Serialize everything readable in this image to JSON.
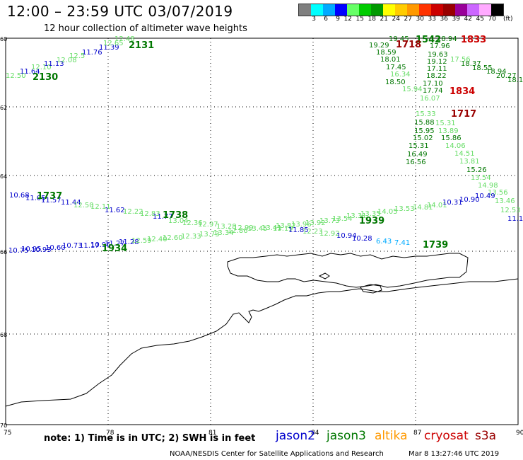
{
  "title": "12:00 – 23:59 UTC 03/07/2019",
  "subtitle": "12 hour collection of altimeter wave heights",
  "colorbar": {
    "labels": [
      "3",
      "6",
      "9",
      "12",
      "15",
      "18",
      "21",
      "24",
      "27",
      "30",
      "33",
      "36",
      "39",
      "42",
      "45",
      "70"
    ],
    "unit": "(ft)",
    "colors": [
      "#7f7f7f",
      "#00ffff",
      "#00aaff",
      "#0000ff",
      "#66ff66",
      "#00cc00",
      "#009900",
      "#ffff00",
      "#ffcc00",
      "#ff9900",
      "#ff3300",
      "#cc0000",
      "#990000",
      "#990099",
      "#cc66ff",
      "#ffaaff",
      "#000000"
    ]
  },
  "axes": {
    "lon_ticks": [
      "75",
      "78",
      "81",
      "84",
      "87",
      "90"
    ],
    "lat_ticks": [
      "60",
      "62",
      "64",
      "66",
      "68",
      "70"
    ]
  },
  "note": "note: 1) Time is in UTC; 2) SWH is in feet",
  "legend": [
    {
      "name": "jason2",
      "color": "#0000cc"
    },
    {
      "name": "jason3",
      "color": "#007700"
    },
    {
      "name": "altika",
      "color": "#ff9900"
    },
    {
      "name": "cryosat",
      "color": "#cc0000"
    },
    {
      "name": "s3a",
      "color": "#990000"
    }
  ],
  "credit": "NOAA/NESDIS Center for Satellite Applications and Research",
  "timestamp": "Mar  8 13:27:46 UTC 2019",
  "pass_times": [
    {
      "label": "2131",
      "color": "#007700"
    },
    {
      "label": "2130",
      "color": "#007700"
    },
    {
      "label": "1542",
      "color": "#007700"
    },
    {
      "label": "1833",
      "color": "#cc0000"
    },
    {
      "label": "1718",
      "color": "#990000"
    },
    {
      "label": "1834",
      "color": "#cc0000"
    },
    {
      "label": "1717",
      "color": "#990000"
    },
    {
      "label": "1737",
      "color": "#007700"
    },
    {
      "label": "1738",
      "color": "#007700"
    },
    {
      "label": "1939",
      "color": "#007700"
    },
    {
      "label": "1934",
      "color": "#007700"
    },
    {
      "label": "1739",
      "color": "#007700"
    }
  ],
  "track_values": [
    {
      "t": "12.50",
      "c": "#66dd66"
    },
    {
      "t": "11.64",
      "c": "#0000cc"
    },
    {
      "t": "12.10",
      "c": "#66dd66"
    },
    {
      "t": "11.13",
      "c": "#0000cc"
    },
    {
      "t": "12.08",
      "c": "#66dd66"
    },
    {
      "t": "12.5",
      "c": "#66dd66"
    },
    {
      "t": "11.76",
      "c": "#0000cc"
    },
    {
      "t": "11.39",
      "c": "#0000cc"
    },
    {
      "t": "12.65",
      "c": "#66dd66"
    },
    {
      "t": "12.48",
      "c": "#66dd66"
    },
    {
      "t": "19.45",
      "c": "#007700"
    },
    {
      "t": "19.29",
      "c": "#007700"
    },
    {
      "t": "18.59",
      "c": "#007700"
    },
    {
      "t": "18.01",
      "c": "#007700"
    },
    {
      "t": "17.45",
      "c": "#007700"
    },
    {
      "t": "16.34",
      "c": "#66dd66"
    },
    {
      "t": "18.50",
      "c": "#007700"
    },
    {
      "t": "15.94",
      "c": "#66dd66"
    },
    {
      "t": "17.96",
      "c": "#007700"
    },
    {
      "t": "19.63",
      "c": "#007700"
    },
    {
      "t": "19.12",
      "c": "#007700"
    },
    {
      "t": "17.11",
      "c": "#007700"
    },
    {
      "t": "18.22",
      "c": "#007700"
    },
    {
      "t": "17.10",
      "c": "#007700"
    },
    {
      "t": "17.74",
      "c": "#007700"
    },
    {
      "t": "16.07",
      "c": "#66dd66"
    },
    {
      "t": "18.94",
      "c": "#007700"
    },
    {
      "t": "17.56",
      "c": "#66dd66"
    },
    {
      "t": "18.37",
      "c": "#007700"
    },
    {
      "t": "18.55",
      "c": "#007700"
    },
    {
      "t": "18.94",
      "c": "#007700"
    },
    {
      "t": "20.27",
      "c": "#007700"
    },
    {
      "t": "18.1",
      "c": "#007700"
    },
    {
      "t": "15.33",
      "c": "#66dd66"
    },
    {
      "t": "15.88",
      "c": "#007700"
    },
    {
      "t": "15.95",
      "c": "#007700"
    },
    {
      "t": "15.02",
      "c": "#007700"
    },
    {
      "t": "15.31",
      "c": "#007700"
    },
    {
      "t": "16.49",
      "c": "#007700"
    },
    {
      "t": "16.56",
      "c": "#007700"
    },
    {
      "t": "15.31",
      "c": "#66dd66"
    },
    {
      "t": "13.89",
      "c": "#66dd66"
    },
    {
      "t": "15.86",
      "c": "#007700"
    },
    {
      "t": "14.06",
      "c": "#66dd66"
    },
    {
      "t": "14.51",
      "c": "#66dd66"
    },
    {
      "t": "13.81",
      "c": "#66dd66"
    },
    {
      "t": "15.26",
      "c": "#007700"
    },
    {
      "t": "13.54",
      "c": "#66dd66"
    },
    {
      "t": "14.98",
      "c": "#66dd66"
    },
    {
      "t": "13.56",
      "c": "#66dd66"
    },
    {
      "t": "13.46",
      "c": "#66dd66"
    },
    {
      "t": "12.53",
      "c": "#66dd66"
    },
    {
      "t": "11.1",
      "c": "#0000cc"
    },
    {
      "t": "10.68",
      "c": "#0000cc"
    },
    {
      "t": "11.05",
      "c": "#0000cc"
    },
    {
      "t": "11.57",
      "c": "#0000cc"
    },
    {
      "t": "11.44",
      "c": "#0000cc"
    },
    {
      "t": "12.50",
      "c": "#66dd66"
    },
    {
      "t": "12.11",
      "c": "#66dd66"
    },
    {
      "t": "11.62",
      "c": "#0000cc"
    },
    {
      "t": "12.22",
      "c": "#66dd66"
    },
    {
      "t": "12.83",
      "c": "#66dd66"
    },
    {
      "t": "11.77",
      "c": "#0000cc"
    },
    {
      "t": "13.04",
      "c": "#66dd66"
    },
    {
      "t": "12.36",
      "c": "#66dd66"
    },
    {
      "t": "12.97",
      "c": "#66dd66"
    },
    {
      "t": "13.28",
      "c": "#66dd66"
    },
    {
      "t": "12.99",
      "c": "#66dd66"
    },
    {
      "t": "13.45",
      "c": "#66dd66"
    },
    {
      "t": "13.41",
      "c": "#66dd66"
    },
    {
      "t": "13.82",
      "c": "#66dd66"
    },
    {
      "t": "13.96",
      "c": "#66dd66"
    },
    {
      "t": "13.92",
      "c": "#66dd66"
    },
    {
      "t": "13.73",
      "c": "#66dd66"
    },
    {
      "t": "13.54",
      "c": "#66dd66"
    },
    {
      "t": "13.31",
      "c": "#66dd66"
    },
    {
      "t": "13.35",
      "c": "#66dd66"
    },
    {
      "t": "14.05",
      "c": "#66dd66"
    },
    {
      "t": "13.53",
      "c": "#66dd66"
    },
    {
      "t": "14.81",
      "c": "#66dd66"
    },
    {
      "t": "14.01",
      "c": "#66dd66"
    },
    {
      "t": "10.31",
      "c": "#0000cc"
    },
    {
      "t": "10.90",
      "c": "#0000cc"
    },
    {
      "t": "10.49",
      "c": "#0000cc"
    },
    {
      "t": "10.75",
      "c": "#0000cc"
    },
    {
      "t": "10.95",
      "c": "#0000cc"
    },
    {
      "t": "10.93",
      "c": "#0000cc"
    },
    {
      "t": "10.60",
      "c": "#0000cc"
    },
    {
      "t": "10.73",
      "c": "#0000cc"
    },
    {
      "t": "11.17",
      "c": "#0000cc"
    },
    {
      "t": "10.96",
      "c": "#0000cc"
    },
    {
      "t": "11.27",
      "c": "#0000cc"
    },
    {
      "t": "11.28",
      "c": "#0000cc"
    },
    {
      "t": "12.59",
      "c": "#66dd66"
    },
    {
      "t": "12.40",
      "c": "#66dd66"
    },
    {
      "t": "12.60",
      "c": "#66dd66"
    },
    {
      "t": "12.33",
      "c": "#66dd66"
    },
    {
      "t": "13.73",
      "c": "#66dd66"
    },
    {
      "t": "13.34",
      "c": "#66dd66"
    },
    {
      "t": "12.86",
      "c": "#66dd66"
    },
    {
      "t": "13.19",
      "c": "#66dd66"
    },
    {
      "t": "11.85",
      "c": "#0000cc"
    },
    {
      "t": "12.23",
      "c": "#66dd66"
    },
    {
      "t": "12.92",
      "c": "#66dd66"
    },
    {
      "t": "10.94",
      "c": "#0000cc"
    },
    {
      "t": "10.28",
      "c": "#0000cc"
    },
    {
      "t": "6.43",
      "c": "#00aaff"
    },
    {
      "t": "7.41",
      "c": "#00aaff"
    }
  ]
}
